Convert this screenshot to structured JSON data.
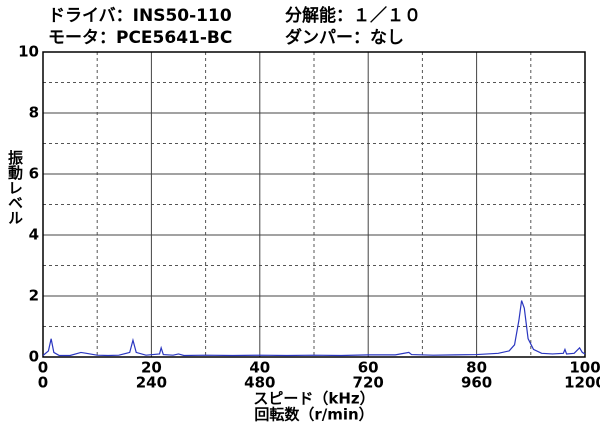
{
  "chart_data": {
    "type": "line",
    "annotations": [
      "ドライバ：INS50-110",
      "分解能：１／１０",
      "モータ：PCE5641-BC",
      "ダンパー：なし"
    ],
    "ylabel": "振動レベル",
    "xlabel": "スピード（kHz）",
    "x2label": "回転数（r/min）",
    "xlim": [
      0,
      100
    ],
    "xticks": [
      0,
      20,
      40,
      60,
      80,
      100
    ],
    "xminorticks": [
      10,
      30,
      50,
      70,
      90
    ],
    "x2lim": [
      0,
      1200
    ],
    "x2ticks": [
      0,
      240,
      480,
      720,
      960,
      1200
    ],
    "ylim": [
      0,
      10
    ],
    "yticks": [
      0,
      2,
      4,
      6,
      8,
      10
    ],
    "yminorticks": [
      1,
      3,
      5,
      7,
      9
    ],
    "grid": true,
    "series": [
      {
        "color": "#2a36c0",
        "x": [
          0,
          1,
          1.5,
          2,
          3,
          5,
          7,
          8,
          10,
          12,
          14,
          16,
          16.6,
          17.2,
          19,
          21.5,
          21.8,
          22.2,
          24,
          25,
          26,
          30,
          35,
          40,
          45,
          50,
          55,
          60,
          65,
          67.5,
          68,
          72,
          76,
          80,
          84,
          86,
          87,
          87.8,
          88.3,
          88.8,
          89.5,
          90.5,
          92,
          94,
          96,
          96.3,
          96.6,
          98,
          99,
          99.5,
          100
        ],
        "values": [
          0.05,
          0.2,
          0.6,
          0.15,
          0.05,
          0.05,
          0.15,
          0.12,
          0.06,
          0.05,
          0.06,
          0.15,
          0.55,
          0.15,
          0.06,
          0.1,
          0.3,
          0.08,
          0.06,
          0.1,
          0.05,
          0.06,
          0.05,
          0.06,
          0.05,
          0.06,
          0.05,
          0.07,
          0.07,
          0.15,
          0.08,
          0.06,
          0.07,
          0.08,
          0.12,
          0.2,
          0.4,
          1.2,
          1.85,
          1.6,
          0.6,
          0.25,
          0.12,
          0.1,
          0.12,
          0.25,
          0.1,
          0.12,
          0.3,
          0.15,
          0.1
        ]
      }
    ]
  }
}
